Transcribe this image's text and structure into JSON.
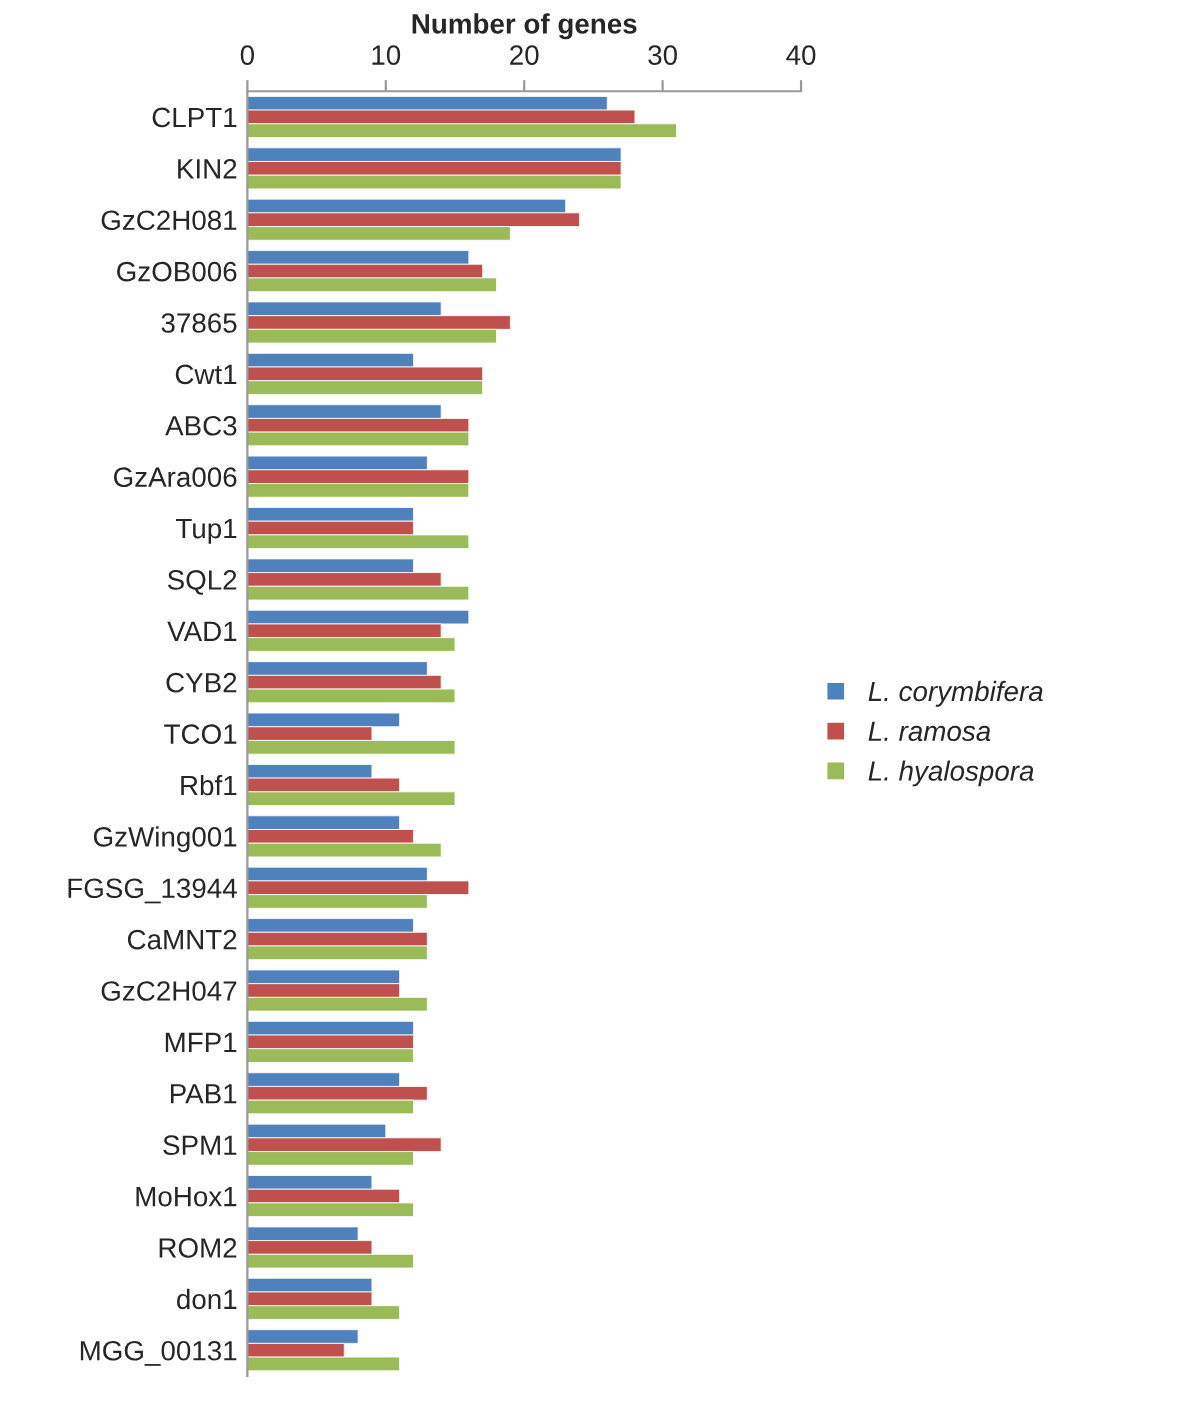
{
  "chart_data": {
    "type": "bar",
    "orientation": "horizontal",
    "xlabel": "Number of genes",
    "categories": [
      "CLPT1",
      "KIN2",
      "GzC2H081",
      "GzOB006",
      "37865",
      "Cwt1",
      "ABC3",
      "GzAra006",
      "Tup1",
      "SQL2",
      "VAD1",
      "CYB2",
      "TCO1",
      "Rbf1",
      "GzWing001",
      "FGSG_13944",
      "CaMNT2",
      "GzC2H047",
      "MFP1",
      "PAB1",
      "SPM1",
      "MoHox1",
      "ROM2",
      "don1",
      "MGG_00131"
    ],
    "series": [
      {
        "name": "L. corymbifera",
        "color": "#4f81bd",
        "values": [
          26,
          27,
          23,
          16,
          14,
          12,
          14,
          13,
          12,
          12,
          16,
          13,
          11,
          9,
          11,
          13,
          12,
          11,
          12,
          11,
          10,
          9,
          8,
          9,
          8
        ]
      },
      {
        "name": "L. ramosa",
        "color": "#c0504d",
        "values": [
          28,
          27,
          24,
          17,
          19,
          17,
          16,
          16,
          12,
          14,
          14,
          14,
          9,
          11,
          12,
          16,
          13,
          11,
          12,
          13,
          14,
          11,
          9,
          9,
          7
        ]
      },
      {
        "name": "L. hyalospora",
        "color": "#9bbb59",
        "values": [
          31,
          27,
          19,
          18,
          18,
          17,
          16,
          16,
          16,
          16,
          15,
          15,
          15,
          15,
          14,
          13,
          13,
          13,
          12,
          12,
          12,
          12,
          12,
          11,
          11
        ]
      }
    ],
    "xlim": [
      0,
      40
    ],
    "xticks": [
      0,
      10,
      20,
      30,
      40
    ],
    "grid": false,
    "legend": "right"
  }
}
